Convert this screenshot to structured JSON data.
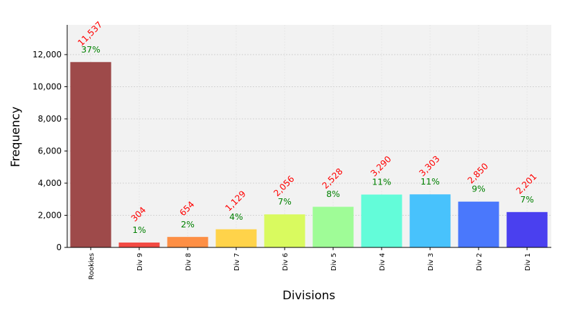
{
  "chart_data": {
    "type": "bar",
    "xlabel": "Divisions",
    "ylabel": "Frequency",
    "categories": [
      "Rookies",
      "Div 9",
      "Div 8",
      "Div 7",
      "Div 6",
      "Div 5",
      "Div 4",
      "Div 3",
      "Div 2",
      "Div 1"
    ],
    "values": [
      11537,
      304,
      654,
      1129,
      2056,
      2528,
      3290,
      3303,
      2850,
      2201
    ],
    "value_labels": [
      "11,537",
      "304",
      "654",
      "1,129",
      "2,056",
      "2,528",
      "3,290",
      "3,303",
      "2,850",
      "2,201"
    ],
    "percent_labels": [
      "37%",
      "1%",
      "2%",
      "4%",
      "7%",
      "8%",
      "11%",
      "11%",
      "9%",
      "7%"
    ],
    "bar_colors": [
      "#9e4a4a",
      "#f24a43",
      "#fd8f45",
      "#ffd34a",
      "#d9fa5f",
      "#9ffc97",
      "#63fcd9",
      "#48c2fc",
      "#4a78fc",
      "#4a40ef"
    ],
    "yticks": [
      0,
      2000,
      4000,
      6000,
      8000,
      10000,
      12000
    ],
    "ytick_labels": [
      "0",
      "2,000",
      "4,000",
      "6,000",
      "8,000",
      "10,000",
      "12,000"
    ],
    "ylim": [
      0,
      13850
    ],
    "grid": true,
    "colors": {
      "plot_background": "#f2f2f2",
      "value_label": "#ff0000",
      "percent_label": "#008000"
    }
  }
}
